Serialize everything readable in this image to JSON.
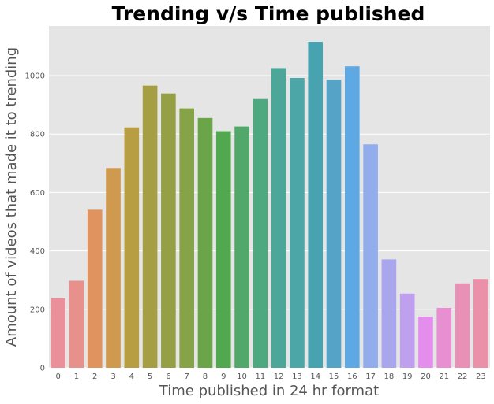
{
  "chart_data": {
    "type": "bar",
    "title": "Trending v/s Time published",
    "xlabel": "Time published in 24 hr format",
    "ylabel": "Amount of videos that made it to trending",
    "categories": [
      "0",
      "1",
      "2",
      "3",
      "4",
      "5",
      "6",
      "7",
      "8",
      "9",
      "10",
      "11",
      "12",
      "13",
      "14",
      "15",
      "16",
      "17",
      "18",
      "19",
      "20",
      "21",
      "22",
      "23"
    ],
    "values": [
      238,
      298,
      541,
      684,
      823,
      966,
      939,
      888,
      855,
      810,
      826,
      920,
      1026,
      992,
      1116,
      986,
      1032,
      765,
      371,
      254,
      175,
      205,
      289,
      304
    ],
    "colors": [
      "#eb909a",
      "#e8908c",
      "#e0935e",
      "#cf9a4e",
      "#b79e43",
      "#a59e44",
      "#959f46",
      "#86a447",
      "#6aa549",
      "#52a84e",
      "#51a86a",
      "#4ea981",
      "#4da799",
      "#4ca5a6",
      "#47a3b0",
      "#55a3c7",
      "#5ea9e3",
      "#92acec",
      "#a9a6ee",
      "#bea0ee",
      "#e48ded",
      "#e78fd0",
      "#e990b7",
      "#ea90a8"
    ],
    "yticks": [
      0,
      200,
      400,
      600,
      800,
      1000
    ],
    "ylim": [
      0,
      1170
    ],
    "grid": true,
    "background": "#e5e5e5"
  }
}
